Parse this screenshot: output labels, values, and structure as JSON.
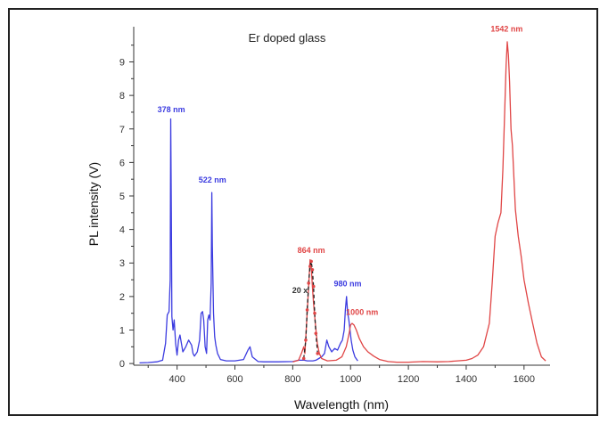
{
  "chart_data": {
    "type": "line",
    "title": "Er doped glass",
    "xlabel": "Wavelength (nm)",
    "ylabel": "PL intensity (V)",
    "xlim": [
      250,
      1690
    ],
    "ylim": [
      -0.05,
      10.05
    ],
    "xticks": [
      400,
      600,
      800,
      1000,
      1200,
      1400,
      1600
    ],
    "yticks": [
      0,
      1,
      2,
      3,
      4,
      5,
      6,
      7,
      8,
      9
    ],
    "xtick_labels": [
      "400",
      "600",
      "800",
      "1000",
      "1200",
      "1400",
      "1600"
    ],
    "ytick_labels": [
      "0",
      "1",
      "2",
      "3",
      "4",
      "5",
      "6",
      "7",
      "8",
      "9"
    ],
    "series": [
      {
        "color": "#3c3ce0",
        "x": [
          270,
          300,
          330,
          350,
          360,
          366,
          372,
          376,
          378,
          380,
          382,
          386,
          390,
          395,
          400,
          405,
          410,
          420,
          430,
          440,
          450,
          455,
          460,
          470,
          478,
          483,
          488,
          492,
          497,
          502,
          506,
          510,
          514,
          518,
          520,
          522,
          526,
          530,
          534,
          540,
          550,
          570,
          600,
          630,
          645,
          652,
          660,
          680,
          700,
          750,
          800,
          820,
          840,
          850,
          870,
          880,
          890,
          900,
          910,
          918,
          925,
          935,
          945,
          955,
          965,
          972,
          978,
          982,
          986,
          990,
          994,
          998,
          1002,
          1008,
          1015,
          1025
        ],
        "y": [
          0.02,
          0.03,
          0.05,
          0.1,
          0.6,
          1.45,
          1.55,
          2.5,
          7.3,
          4.5,
          1.4,
          1.0,
          1.3,
          0.6,
          0.25,
          0.7,
          0.85,
          0.35,
          0.5,
          0.7,
          0.55,
          0.3,
          0.22,
          0.35,
          0.7,
          1.5,
          1.55,
          1.3,
          0.5,
          0.3,
          1.3,
          1.45,
          1.3,
          2.4,
          5.1,
          3.5,
          1.5,
          0.8,
          0.55,
          0.3,
          0.12,
          0.08,
          0.08,
          0.12,
          0.4,
          0.5,
          0.2,
          0.06,
          0.05,
          0.05,
          0.06,
          0.1,
          0.1,
          0.08,
          0.08,
          0.1,
          0.15,
          0.2,
          0.3,
          0.7,
          0.5,
          0.35,
          0.45,
          0.4,
          0.6,
          0.7,
          1.0,
          1.6,
          2.0,
          1.5,
          1.3,
          1.0,
          0.7,
          0.4,
          0.2,
          0.08
        ]
      },
      {
        "color": "#e04646",
        "x": [
          800,
          820,
          830,
          838,
          842,
          848,
          855,
          860,
          864,
          868,
          872,
          878,
          885,
          892,
          900,
          920,
          950,
          970,
          985,
          995,
          1000,
          1005,
          1012,
          1020,
          1030,
          1045,
          1060,
          1080,
          1100,
          1130,
          1160,
          1200,
          1250,
          1300,
          1340,
          1370,
          1400,
          1420,
          1440,
          1460,
          1480,
          1490,
          1500,
          1510,
          1520,
          1527,
          1533,
          1538,
          1542,
          1546,
          1550,
          1555,
          1560,
          1570,
          1580,
          1590,
          1600,
          1615,
          1630,
          1645,
          1660,
          1675
        ],
        "y": [
          0.05,
          0.1,
          0.3,
          0.5,
          0.3,
          1.2,
          2.3,
          3.1,
          2.9,
          2.3,
          1.8,
          1.2,
          0.6,
          0.3,
          0.15,
          0.08,
          0.1,
          0.2,
          0.5,
          0.9,
          1.15,
          1.2,
          1.15,
          1.0,
          0.75,
          0.5,
          0.35,
          0.22,
          0.12,
          0.06,
          0.04,
          0.04,
          0.06,
          0.05,
          0.06,
          0.08,
          0.1,
          0.15,
          0.25,
          0.5,
          1.2,
          2.4,
          3.8,
          4.2,
          4.5,
          5.8,
          7.5,
          8.9,
          9.6,
          9.2,
          8.4,
          7.0,
          6.5,
          4.6,
          3.8,
          3.2,
          2.5,
          1.8,
          1.2,
          0.6,
          0.2,
          0.08
        ]
      },
      {
        "color": "#222222",
        "dashed": true,
        "x": [
          838,
          845,
          850,
          855,
          860,
          864,
          868,
          872,
          876,
          880,
          886
        ],
        "y": [
          0.15,
          0.7,
          1.6,
          2.4,
          2.9,
          3.05,
          2.8,
          2.3,
          1.5,
          0.9,
          0.3
        ]
      }
    ],
    "annotations": [
      {
        "text": "378 nm",
        "x": 380,
        "y": 7.5,
        "color": "#3c3ce0"
      },
      {
        "text": "522 nm",
        "x": 522,
        "y": 5.4,
        "color": "#3c3ce0"
      },
      {
        "text": "864 nm",
        "x": 864,
        "y": 3.3,
        "color": "#e04646"
      },
      {
        "text": "20 x",
        "x": 825,
        "y": 2.1,
        "color": "#333333"
      },
      {
        "text": "980 nm",
        "x": 990,
        "y": 2.3,
        "color": "#3c3ce0"
      },
      {
        "text": "1000 nm",
        "x": 1040,
        "y": 1.45,
        "color": "#e04646"
      },
      {
        "text": "1542 nm",
        "x": 1540,
        "y": 9.9,
        "color": "#e04646"
      }
    ]
  }
}
